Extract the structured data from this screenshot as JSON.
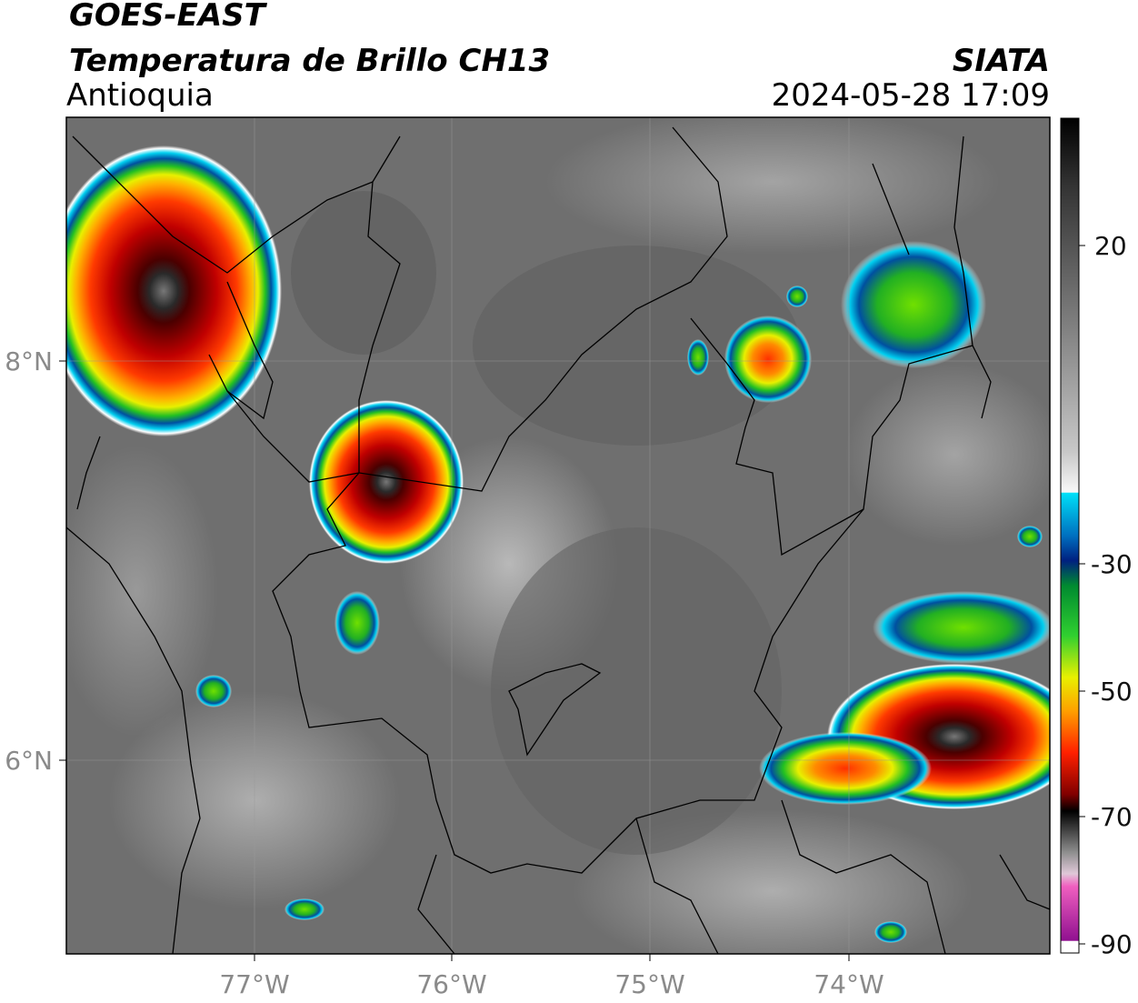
{
  "header": {
    "title": "GOES-EAST",
    "subtitle": "Temperatura de Brillo CH13",
    "region": "Antioquia",
    "source": "SIATA",
    "timestamp": "2024-05-28 17:09"
  },
  "map": {
    "lon_labels": [
      "77°W",
      "76°W",
      "75°W",
      "74°W"
    ],
    "lat_labels": [
      "8°N",
      "6°N"
    ]
  },
  "colorbar": {
    "tick_labels": [
      "20",
      "-30",
      "-50",
      "-70",
      "-90"
    ]
  }
}
